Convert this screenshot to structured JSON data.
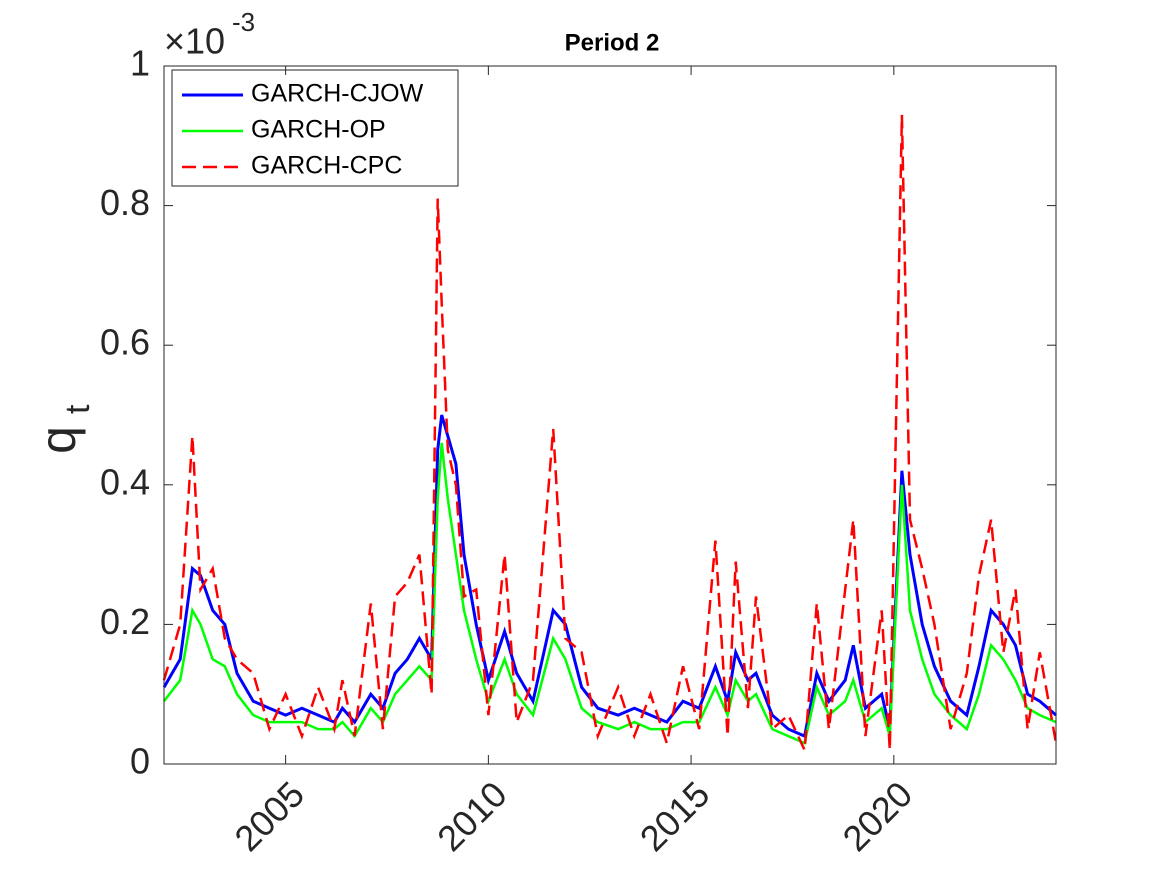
{
  "chart_data": {
    "type": "line",
    "title": "Period 2",
    "ylabel": "q",
    "ylabel_sub": "t",
    "y_multiplier_base": "×10",
    "y_multiplier_exp": "-3",
    "xlim": [
      2002,
      2024
    ],
    "xticks": [
      2005,
      2010,
      2015,
      2020
    ],
    "ylim": [
      0,
      1
    ],
    "yticks": [
      0,
      0.2,
      0.4,
      0.6,
      0.8,
      1
    ],
    "legend": "upper-left",
    "x": [
      2002.0,
      2002.4,
      2002.7,
      2002.9,
      2003.2,
      2003.5,
      2003.8,
      2004.2,
      2004.6,
      2005.0,
      2005.4,
      2005.8,
      2006.2,
      2006.4,
      2006.7,
      2007.1,
      2007.4,
      2007.7,
      2008.0,
      2008.3,
      2008.6,
      2008.75,
      2008.85,
      2009.0,
      2009.2,
      2009.4,
      2009.7,
      2010.0,
      2010.4,
      2010.7,
      2011.1,
      2011.6,
      2011.9,
      2012.3,
      2012.7,
      2013.2,
      2013.6,
      2014.0,
      2014.4,
      2014.8,
      2015.2,
      2015.6,
      2015.9,
      2016.1,
      2016.4,
      2016.6,
      2017.0,
      2017.4,
      2017.8,
      2018.1,
      2018.4,
      2018.8,
      2019.0,
      2019.3,
      2019.7,
      2019.9,
      2020.2,
      2020.4,
      2020.7,
      2021.0,
      2021.4,
      2021.8,
      2022.1,
      2022.4,
      2022.7,
      2023.0,
      2023.3,
      2023.6,
      2024.0
    ],
    "series": [
      {
        "name": "GARCH-CJOW",
        "color": "#0000ff",
        "dash": false,
        "values": [
          0.11,
          0.15,
          0.28,
          0.27,
          0.22,
          0.2,
          0.13,
          0.09,
          0.08,
          0.07,
          0.08,
          0.07,
          0.06,
          0.08,
          0.06,
          0.1,
          0.08,
          0.13,
          0.15,
          0.18,
          0.15,
          0.45,
          0.5,
          0.47,
          0.43,
          0.3,
          0.2,
          0.12,
          0.19,
          0.13,
          0.09,
          0.22,
          0.2,
          0.11,
          0.08,
          0.07,
          0.08,
          0.07,
          0.06,
          0.09,
          0.08,
          0.14,
          0.09,
          0.16,
          0.12,
          0.13,
          0.07,
          0.05,
          0.04,
          0.13,
          0.09,
          0.12,
          0.17,
          0.08,
          0.1,
          0.05,
          0.42,
          0.3,
          0.2,
          0.14,
          0.09,
          0.07,
          0.14,
          0.22,
          0.2,
          0.17,
          0.1,
          0.09,
          0.07
        ]
      },
      {
        "name": "GARCH-OP",
        "color": "#00ff00",
        "dash": false,
        "values": [
          0.09,
          0.12,
          0.22,
          0.2,
          0.15,
          0.14,
          0.1,
          0.07,
          0.06,
          0.06,
          0.06,
          0.05,
          0.05,
          0.06,
          0.04,
          0.08,
          0.06,
          0.1,
          0.12,
          0.14,
          0.12,
          0.38,
          0.46,
          0.38,
          0.3,
          0.22,
          0.15,
          0.09,
          0.15,
          0.1,
          0.07,
          0.18,
          0.15,
          0.08,
          0.06,
          0.05,
          0.06,
          0.05,
          0.05,
          0.06,
          0.06,
          0.11,
          0.07,
          0.12,
          0.09,
          0.1,
          0.05,
          0.04,
          0.03,
          0.11,
          0.07,
          0.09,
          0.12,
          0.06,
          0.08,
          0.04,
          0.4,
          0.22,
          0.15,
          0.1,
          0.07,
          0.05,
          0.1,
          0.17,
          0.15,
          0.12,
          0.08,
          0.07,
          0.06
        ]
      },
      {
        "name": "GARCH-CPC",
        "color": "#ff0000",
        "dash": true,
        "values": [
          0.12,
          0.2,
          0.47,
          0.25,
          0.28,
          0.18,
          0.15,
          0.13,
          0.05,
          0.1,
          0.04,
          0.11,
          0.05,
          0.12,
          0.04,
          0.23,
          0.05,
          0.24,
          0.26,
          0.3,
          0.1,
          0.81,
          0.66,
          0.45,
          0.4,
          0.24,
          0.25,
          0.07,
          0.3,
          0.06,
          0.12,
          0.48,
          0.18,
          0.16,
          0.04,
          0.11,
          0.04,
          0.1,
          0.03,
          0.14,
          0.05,
          0.32,
          0.04,
          0.29,
          0.08,
          0.24,
          0.05,
          0.07,
          0.02,
          0.23,
          0.05,
          0.25,
          0.35,
          0.04,
          0.22,
          0.02,
          0.93,
          0.35,
          0.28,
          0.2,
          0.05,
          0.13,
          0.27,
          0.35,
          0.16,
          0.25,
          0.05,
          0.16,
          0.03
        ]
      }
    ]
  }
}
